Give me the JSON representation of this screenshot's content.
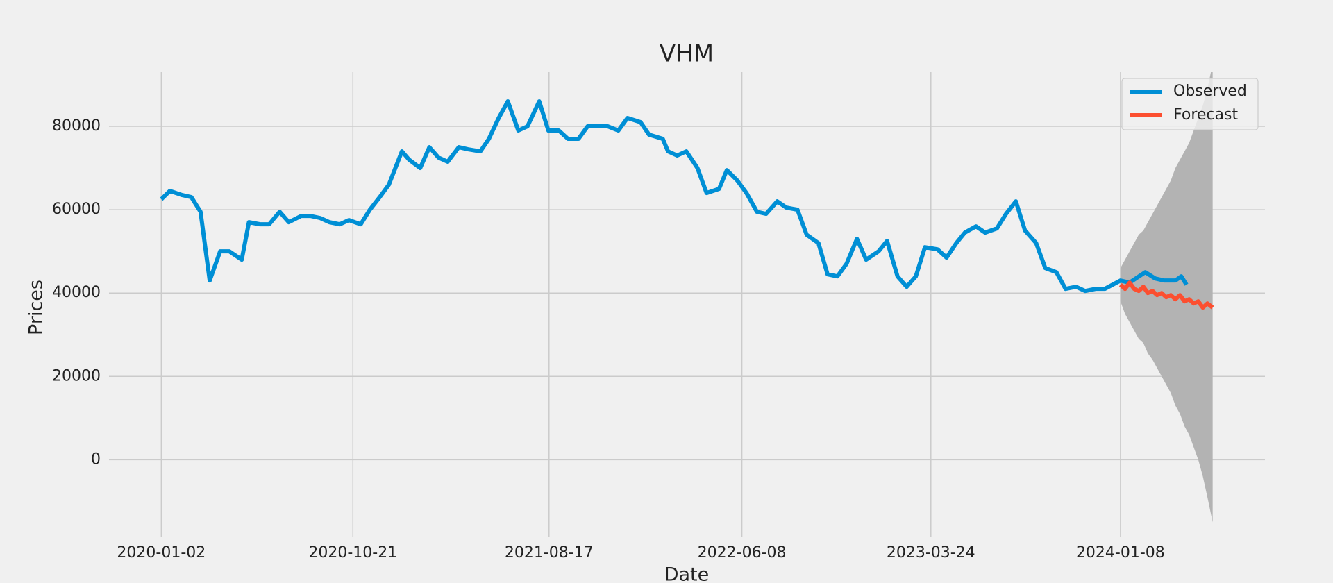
{
  "chart_data": {
    "type": "line",
    "title": "VHM",
    "x_label": "Date",
    "y_label": "Prices",
    "xlim": [
      "2019-10-14",
      "2024-08-16"
    ],
    "ylim": [
      -18600,
      93000
    ],
    "xticks": [
      "2020-01-02",
      "2020-10-21",
      "2021-08-17",
      "2022-06-08",
      "2023-03-24",
      "2024-01-08"
    ],
    "yticks": [
      0,
      20000,
      40000,
      60000,
      80000
    ],
    "grid": true,
    "legend": "upper right",
    "series": [
      {
        "name": "Observed",
        "color": "#008fd5",
        "x": [
          "2020-01-02",
          "2020-01-15",
          "2020-02-03",
          "2020-02-17",
          "2020-03-02",
          "2020-03-16",
          "2020-04-01",
          "2020-04-15",
          "2020-05-04",
          "2020-05-15",
          "2020-06-01",
          "2020-06-15",
          "2020-07-01",
          "2020-07-15",
          "2020-08-03",
          "2020-08-17",
          "2020-09-01",
          "2020-09-15",
          "2020-10-01",
          "2020-10-15",
          "2020-11-02",
          "2020-11-16",
          "2020-12-01",
          "2020-12-15",
          "2021-01-04",
          "2021-01-15",
          "2021-02-01",
          "2021-02-15",
          "2021-03-01",
          "2021-03-15",
          "2021-04-01",
          "2021-04-15",
          "2021-05-04",
          "2021-05-17",
          "2021-06-01",
          "2021-06-15",
          "2021-07-01",
          "2021-07-15",
          "2021-08-02",
          "2021-08-16",
          "2021-09-01",
          "2021-09-15",
          "2021-10-01",
          "2021-10-15",
          "2021-11-01",
          "2021-11-15",
          "2021-12-01",
          "2021-12-15",
          "2022-01-04",
          "2022-01-17",
          "2022-02-07",
          "2022-02-15",
          "2022-03-01",
          "2022-03-15",
          "2022-04-01",
          "2022-04-15",
          "2022-05-04",
          "2022-05-16",
          "2022-06-01",
          "2022-06-15",
          "2022-07-01",
          "2022-07-15",
          "2022-08-01",
          "2022-08-15",
          "2022-09-01",
          "2022-09-15",
          "2022-10-03",
          "2022-10-17",
          "2022-11-01",
          "2022-11-15",
          "2022-12-01",
          "2022-12-15",
          "2023-01-03",
          "2023-01-16",
          "2023-02-01",
          "2023-02-15",
          "2023-03-01",
          "2023-03-15",
          "2023-04-03",
          "2023-04-17",
          "2023-05-02",
          "2023-05-15",
          "2023-06-01",
          "2023-06-15",
          "2023-07-03",
          "2023-07-17",
          "2023-08-01",
          "2023-08-15",
          "2023-09-01",
          "2023-09-15",
          "2023-10-02",
          "2023-10-16",
          "2023-11-01",
          "2023-11-15",
          "2023-12-01",
          "2023-12-15",
          "2024-01-08",
          "2024-01-22",
          "2024-02-15",
          "2024-03-01",
          "2024-03-15",
          "2024-04-01",
          "2024-04-10",
          "2024-04-18"
        ],
        "values": [
          62500,
          64500,
          63500,
          63000,
          59500,
          43000,
          50000,
          50000,
          48000,
          57000,
          56500,
          56500,
          59500,
          57000,
          58500,
          58500,
          58000,
          57000,
          56500,
          57500,
          56500,
          60000,
          63000,
          66000,
          74000,
          72000,
          70000,
          75000,
          72500,
          71500,
          75000,
          74500,
          74000,
          77000,
          82000,
          86000,
          79000,
          80000,
          86000,
          79000,
          79000,
          77000,
          77000,
          80000,
          80000,
          80000,
          79000,
          82000,
          81000,
          78000,
          77000,
          74000,
          73000,
          74000,
          70000,
          64000,
          65000,
          69500,
          67000,
          64000,
          59500,
          59000,
          62000,
          60500,
          60000,
          54000,
          52000,
          44500,
          44000,
          47000,
          53000,
          48000,
          50000,
          52500,
          44000,
          41500,
          44000,
          51000,
          50500,
          48500,
          52000,
          54500,
          56000,
          54500,
          55500,
          59000,
          62000,
          55000,
          52000,
          46000,
          45000,
          41000,
          41500,
          40500,
          41000,
          41000,
          43000,
          42500,
          45000,
          43500,
          43000,
          43000,
          44000,
          42000
        ]
      },
      {
        "name": "Forecast",
        "color": "#fc4f30",
        "x": [
          "2024-01-08",
          "2024-01-15",
          "2024-01-22",
          "2024-01-29",
          "2024-02-05",
          "2024-02-12",
          "2024-02-19",
          "2024-02-26",
          "2024-03-04",
          "2024-03-11",
          "2024-03-18",
          "2024-03-25",
          "2024-04-01",
          "2024-04-08",
          "2024-04-15",
          "2024-04-22",
          "2024-04-29",
          "2024-05-06",
          "2024-05-13",
          "2024-05-20",
          "2024-05-28"
        ],
        "values": [
          42000,
          41000,
          42500,
          41000,
          40500,
          41500,
          40000,
          40500,
          39500,
          40000,
          39000,
          39500,
          38500,
          39500,
          38000,
          38500,
          37500,
          38000,
          36500,
          37500,
          36500
        ]
      }
    ],
    "confidence_interval": {
      "color": "#b3b3b3",
      "x": [
        "2024-01-08",
        "2024-01-15",
        "2024-01-22",
        "2024-01-29",
        "2024-02-05",
        "2024-02-12",
        "2024-02-19",
        "2024-02-26",
        "2024-03-04",
        "2024-03-11",
        "2024-03-18",
        "2024-03-25",
        "2024-04-01",
        "2024-04-08",
        "2024-04-15",
        "2024-04-22",
        "2024-04-29",
        "2024-05-06",
        "2024-05-13",
        "2024-05-20",
        "2024-05-28"
      ],
      "lower": [
        38000,
        35000,
        33000,
        31000,
        29000,
        28000,
        25500,
        24000,
        22000,
        20000,
        18000,
        16000,
        13000,
        11000,
        8000,
        6000,
        3000,
        0,
        -4000,
        -9000,
        -15000
      ],
      "upper": [
        46000,
        48000,
        50000,
        52000,
        54000,
        55000,
        57000,
        59000,
        61000,
        63000,
        65000,
        67000,
        70000,
        72000,
        74000,
        76000,
        79000,
        82000,
        85000,
        89000,
        95000
      ]
    }
  }
}
